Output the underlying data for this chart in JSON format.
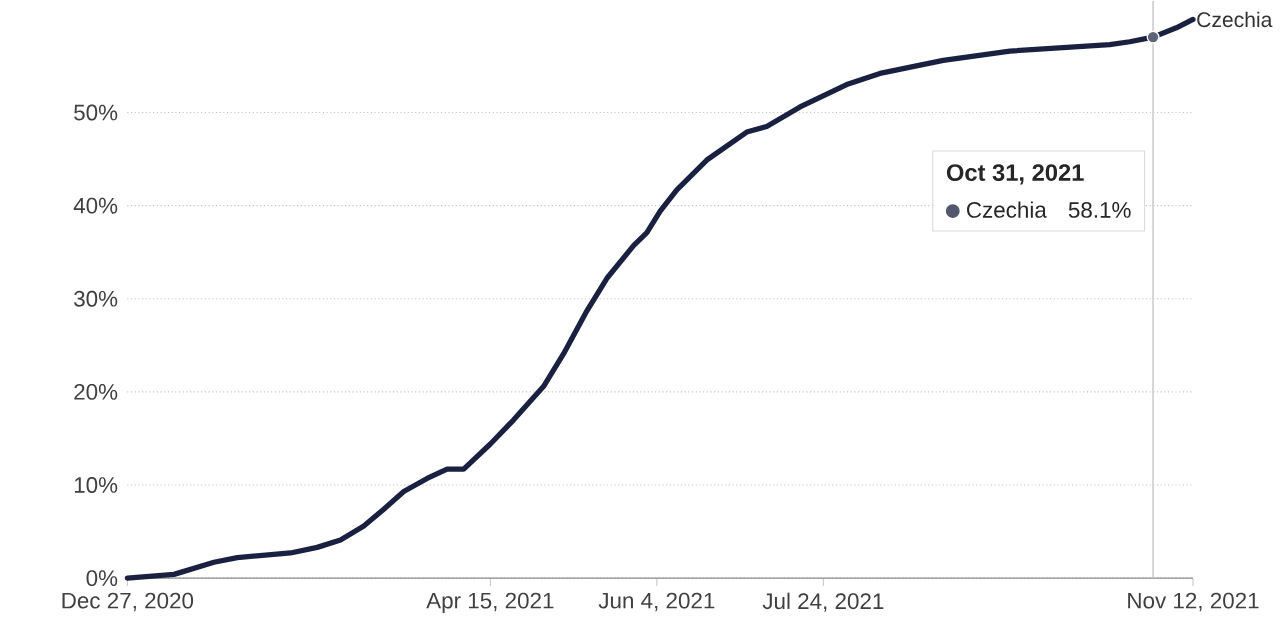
{
  "chart_data": {
    "type": "line",
    "x": [
      "2020-12-27",
      "2021-01-10",
      "2021-01-22",
      "2021-01-29",
      "2021-02-14",
      "2021-02-22",
      "2021-03-01",
      "2021-03-08",
      "2021-03-14",
      "2021-03-20",
      "2021-03-27",
      "2021-04-02",
      "2021-04-07",
      "2021-04-15",
      "2021-04-22",
      "2021-05-01",
      "2021-05-07",
      "2021-05-14",
      "2021-05-20",
      "2021-05-28",
      "2021-06-01",
      "2021-06-05",
      "2021-06-10",
      "2021-06-19",
      "2021-07-01",
      "2021-07-07",
      "2021-07-17",
      "2021-07-31",
      "2021-08-10",
      "2021-08-29",
      "2021-09-18",
      "2021-10-18",
      "2021-10-24",
      "2021-10-31",
      "2021-11-07",
      "2021-11-12"
    ],
    "series": [
      {
        "name": "Czechia",
        "color": "#1a2140",
        "values": [
          0,
          0.4,
          1.7,
          2.2,
          2.7,
          3.3,
          4.1,
          5.6,
          7.4,
          9.3,
          10.7,
          11.7,
          11.7,
          14.4,
          17.0,
          20.6,
          24.1,
          28.7,
          32.2,
          35.7,
          37.1,
          39.4,
          41.7,
          44.9,
          47.9,
          48.5,
          50.6,
          53.0,
          54.2,
          55.6,
          56.6,
          57.3,
          57.6,
          58.1,
          59.1,
          60.0
        ]
      }
    ],
    "xlim": [
      "2020-12-27",
      "2021-11-12"
    ],
    "xticks": [
      {
        "value": "2020-12-27",
        "label": "Dec 27, 2020"
      },
      {
        "value": "2021-04-15",
        "label": "Apr 15, 2021"
      },
      {
        "value": "2021-06-04",
        "label": "Jun 4, 2021"
      },
      {
        "value": "2021-07-24",
        "label": "Jul 24, 2021"
      },
      {
        "value": "2021-11-12",
        "label": "Nov 12, 2021"
      }
    ],
    "ylim": [
      0,
      62
    ],
    "yticks": [
      {
        "value": 0,
        "label": "0%"
      },
      {
        "value": 10,
        "label": "10%"
      },
      {
        "value": 20,
        "label": "20%"
      },
      {
        "value": 30,
        "label": "30%"
      },
      {
        "value": 40,
        "label": "40%"
      },
      {
        "value": 50,
        "label": "50%"
      }
    ],
    "grid": "y",
    "legend": "right",
    "marker": "none",
    "line_style": "solid",
    "ref_lines": [
      {
        "axis": "x",
        "value": "2021-10-31",
        "color": "#cccccc"
      }
    ],
    "annotations": [
      "Oct 31, 2021",
      "58.1%"
    ]
  }
}
